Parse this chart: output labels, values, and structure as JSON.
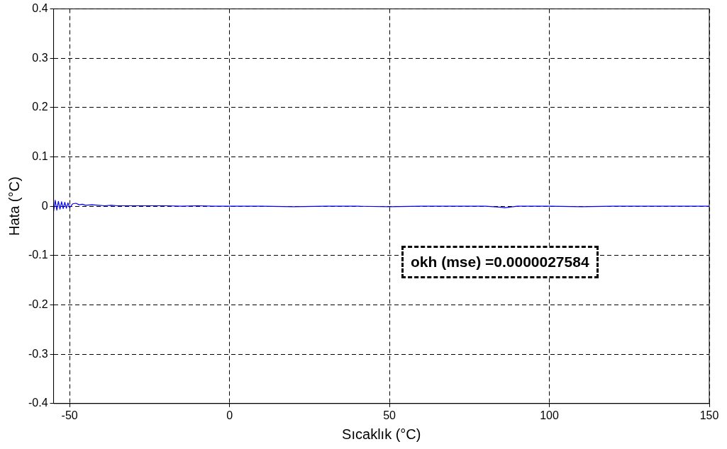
{
  "chart_data": {
    "type": "line",
    "xlabel": "Sıcaklık (°C)",
    "ylabel": "Hata (°C)",
    "x": [
      -55,
      -54.5,
      -54,
      -53.5,
      -53,
      -52.5,
      -52,
      -51.5,
      -51,
      -50.5,
      -50,
      -49,
      -48,
      -47,
      -46,
      -45,
      -43,
      -41,
      -39,
      -37,
      -35,
      -30,
      -25,
      -20,
      -15,
      -10,
      -5,
      0,
      10,
      20,
      30,
      40,
      50,
      60,
      70,
      80,
      85,
      86,
      90,
      100,
      110,
      120,
      130,
      140,
      150
    ],
    "series": [
      {
        "color": "#0000ff",
        "values": [
          -0.01,
          0.012,
          -0.008,
          0.01,
          -0.006,
          0.009,
          -0.005,
          0.008,
          -0.004,
          0.007,
          -0.003,
          0.005,
          0.006,
          0.003,
          0.004,
          0.002,
          0.003,
          0.002,
          0.001,
          0.002,
          0.001,
          0.001,
          0.001,
          0.001,
          0,
          0.001,
          0,
          0,
          0,
          -0.001,
          0,
          0,
          -0.001,
          0,
          0,
          0,
          -0.002,
          -0.003,
          0,
          0,
          -0.001,
          0,
          0,
          0,
          0
        ]
      }
    ],
    "xlim": [
      -55,
      150
    ],
    "xticks": [
      -50,
      0,
      50,
      100,
      150
    ],
    "ylim": [
      -0.4,
      0.4
    ],
    "yticks": [
      -0.4,
      -0.3,
      -0.2,
      -0.1,
      0,
      0.1,
      0.2,
      0.3,
      0.4
    ],
    "grid": true,
    "legend": false,
    "marker": "none",
    "line_style": "solid",
    "annotations": [
      "okh (mse) =0.0000027584"
    ]
  }
}
